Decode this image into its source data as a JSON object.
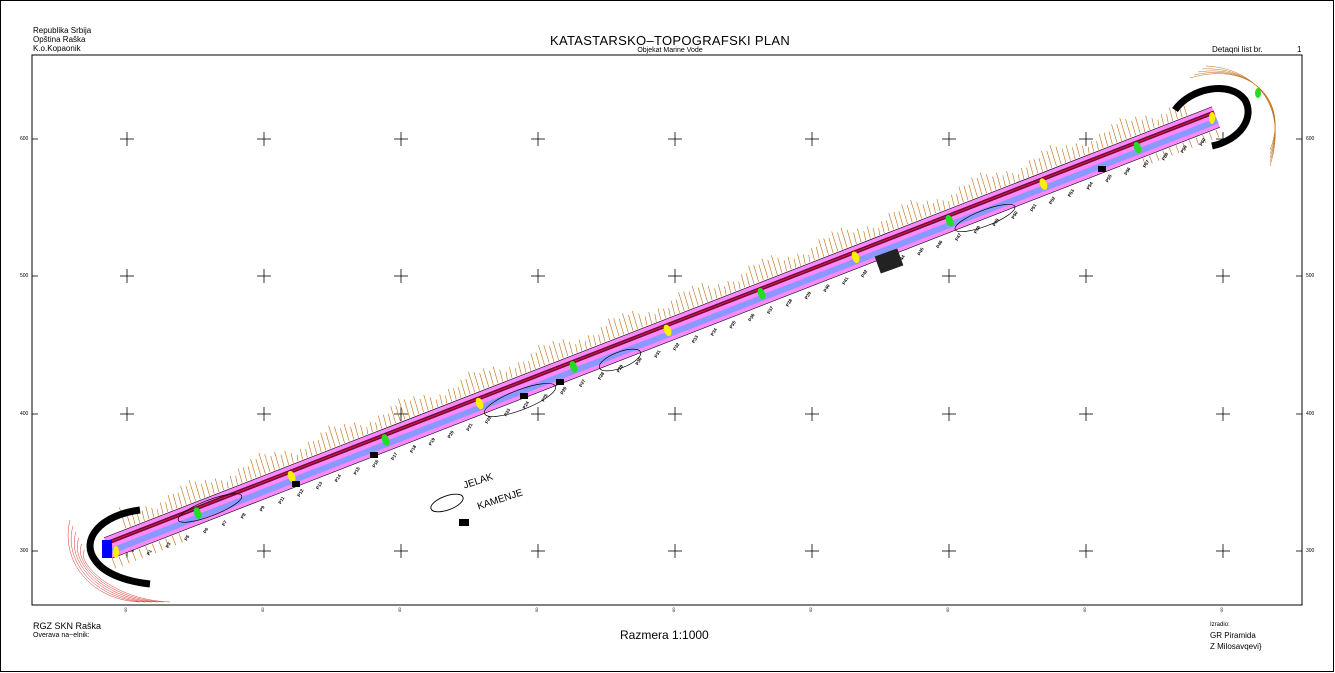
{
  "header": {
    "left_lines": [
      "Republika Srbija",
      "Opština  Raška",
      "K.o.Kopaonik"
    ],
    "title": "KATASTARSKO–TOPOGRAFSKI PLAN",
    "subtitle": "Objekat Marine Vode",
    "detail_label": "Detaqni list br.",
    "detail_number": "1"
  },
  "footer": {
    "left_lines": [
      "RGZ SKN Raška",
      "Overava na~elnik:"
    ],
    "scale": "Razmera 1:1000",
    "right_lines": [
      "Izradio:",
      "GR Piramida",
      "Z Milosavqevi}"
    ]
  },
  "legend": {
    "jelak": "JELAK",
    "kamenje": "KAMENJE"
  },
  "grid": {
    "y_labels": [
      "600",
      "500",
      "400",
      "300"
    ],
    "x_labels": [
      "00",
      "00",
      "00",
      "00",
      "00",
      "00",
      "00",
      "00",
      "00",
      "00"
    ]
  },
  "profiles": [
    "P1",
    "P3",
    "P5",
    "P6",
    "P7",
    "P8",
    "P9",
    "P11",
    "P12",
    "P13",
    "P14",
    "P15",
    "P16",
    "P17",
    "P18",
    "P19",
    "P20",
    "P21",
    "P22",
    "P23",
    "P24",
    "P25",
    "P26",
    "P27",
    "P28",
    "P29",
    "P30",
    "P31",
    "P32",
    "P33",
    "P34",
    "P35",
    "P36",
    "P37",
    "P38",
    "P39",
    "P40",
    "P41",
    "P42",
    "P43",
    "P44",
    "P45",
    "P46",
    "P47",
    "P48",
    "P49",
    "P50",
    "P51",
    "P52",
    "P53",
    "P54",
    "P55",
    "P56",
    "P57",
    "P58",
    "P59",
    "P60"
  ],
  "colors": {
    "route_outer": "#ff88ff",
    "route_mid": "#8a99ff",
    "route_core": "#6a1030",
    "route_line": "#ff1060",
    "marker_green": "#22dd22",
    "marker_yellow": "#ffee00",
    "terrain": "#c06a10",
    "contour": "#e03030",
    "building": "#0000ff"
  }
}
